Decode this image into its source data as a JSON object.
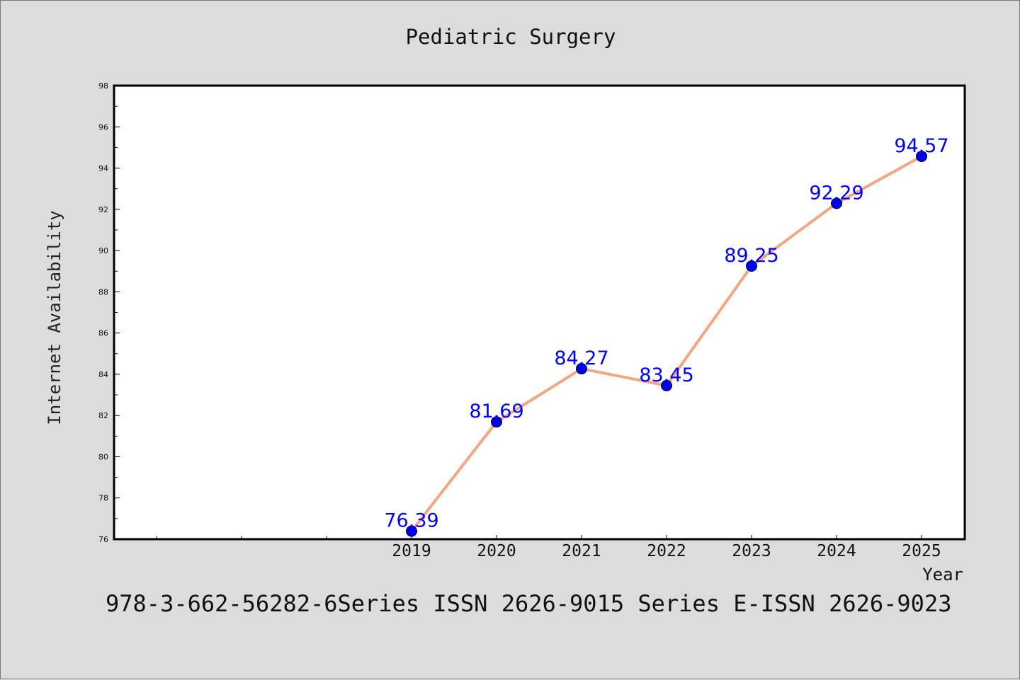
{
  "chart_data": {
    "type": "line",
    "title": "Pediatric Surgery",
    "xlabel": "Year",
    "ylabel": "Internet Availability",
    "categories": [
      "2019",
      "2020",
      "2021",
      "2022",
      "2023",
      "2024",
      "2025"
    ],
    "series": [
      {
        "values": [
          76.39,
          81.69,
          84.27,
          83.45,
          89.25,
          92.29,
          94.57
        ]
      }
    ],
    "data_labels": [
      "76.39",
      "81.69",
      "84.27",
      "83.45",
      "89.25",
      "92.29",
      "94.57"
    ],
    "ylim": [
      76,
      98
    ],
    "y_ticks": [
      76,
      78,
      80,
      82,
      84,
      86,
      88,
      90,
      92,
      94,
      96,
      98
    ],
    "x_slots_before_data": 3.5,
    "grid": false,
    "legend": "none",
    "colors": {
      "line": "#f4a582",
      "marker": "#0000ee",
      "data_label": "#0000ff",
      "plot_bg": "#ffffff",
      "page_bg": "#dcdcdc"
    }
  },
  "footnote": "978-3-662-56282-6Series ISSN 2626-9015 Series E-ISSN 2626-9023"
}
